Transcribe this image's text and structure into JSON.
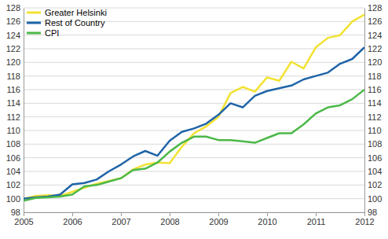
{
  "chart_data": {
    "type": "line",
    "x": [
      2005,
      2005.25,
      2005.5,
      2005.75,
      2006,
      2006.25,
      2006.5,
      2006.75,
      2007,
      2007.25,
      2007.5,
      2007.75,
      2008,
      2008.25,
      2008.5,
      2008.75,
      2009,
      2009.25,
      2009.5,
      2009.75,
      2010,
      2010.25,
      2010.5,
      2010.75,
      2011,
      2011.25,
      2011.5,
      2011.75,
      2012
    ],
    "series": [
      {
        "name": "Greater Helsinki",
        "color": "#f2e232",
        "values": [
          100.0,
          100.4,
          100.5,
          100.4,
          101.0,
          101.6,
          102.2,
          102.6,
          103.0,
          104.3,
          105.0,
          105.3,
          105.2,
          107.6,
          109.6,
          110.6,
          112.0,
          115.5,
          116.4,
          115.7,
          117.8,
          117.3,
          120.1,
          119.1,
          122.2,
          123.6,
          124.0,
          126.0,
          127.0
        ]
      },
      {
        "name": "Rest of Country",
        "color": "#1f64a8",
        "values": [
          100.0,
          100.2,
          100.3,
          100.6,
          102.1,
          102.3,
          102.8,
          104.0,
          105.0,
          106.2,
          107.0,
          106.3,
          108.5,
          109.8,
          110.3,
          111.0,
          112.3,
          114.0,
          113.4,
          115.1,
          115.8,
          116.2,
          116.6,
          117.5,
          118.0,
          118.5,
          119.8,
          120.5,
          122.2
        ]
      },
      {
        "name": "CPI",
        "color": "#4cb848",
        "values": [
          99.7,
          100.1,
          100.2,
          100.3,
          100.6,
          101.8,
          102.0,
          102.5,
          103.0,
          104.2,
          104.4,
          105.3,
          106.9,
          108.2,
          109.1,
          109.1,
          108.6,
          108.6,
          108.4,
          108.2,
          108.9,
          109.6,
          109.6,
          110.9,
          112.5,
          113.4,
          113.7,
          114.6,
          116.0
        ]
      }
    ],
    "xlim": [
      2005,
      2012
    ],
    "xticks": [
      2005,
      2006,
      2007,
      2008,
      2009,
      2010,
      2011,
      2012
    ],
    "ylim": [
      98,
      128
    ],
    "yticks": [
      98,
      100,
      102,
      104,
      106,
      108,
      110,
      112,
      114,
      116,
      118,
      120,
      122,
      124,
      126,
      128
    ],
    "y2lim": [
      98,
      128
    ],
    "y2ticks": [
      98,
      100,
      102,
      104,
      106,
      108,
      110,
      112,
      114,
      116,
      118,
      120,
      122,
      124,
      126,
      128
    ],
    "grid": true,
    "legend": "top-left"
  }
}
